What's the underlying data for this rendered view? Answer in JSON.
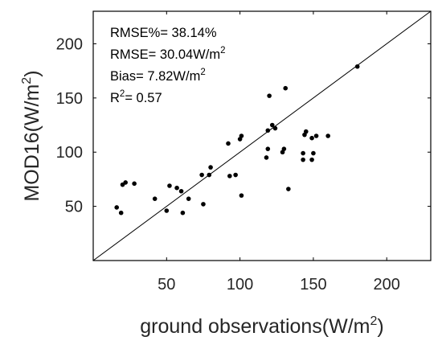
{
  "chart_data": {
    "type": "scatter",
    "title": "",
    "xlabel": {
      "prefix": "ground observations(W/m",
      "sup": "2",
      "suffix": ")"
    },
    "ylabel": {
      "prefix": "MOD16(W/m",
      "sup": "2",
      "suffix": ")"
    },
    "xlim": [
      0,
      230
    ],
    "ylim": [
      0,
      230
    ],
    "xticks": [
      50,
      100,
      150,
      200
    ],
    "yticks": [
      50,
      100,
      150,
      200
    ],
    "grid": false,
    "reference_line": "1:1",
    "stats": [
      {
        "prefix": "RMSE%= 38.14%",
        "sup": "",
        "suffix": ""
      },
      {
        "prefix": "RMSE= 30.04W/m",
        "sup": "2",
        "suffix": ""
      },
      {
        "prefix": "Bias=  7.82W/m",
        "sup": "2",
        "suffix": ""
      },
      {
        "prefix": "R",
        "sup": "2",
        "suffix": "=  0.57"
      }
    ],
    "points": [
      [
        16,
        49
      ],
      [
        19,
        44
      ],
      [
        20,
        70
      ],
      [
        22,
        72
      ],
      [
        28,
        71
      ],
      [
        42,
        57
      ],
      [
        50,
        46
      ],
      [
        52,
        69
      ],
      [
        57,
        67
      ],
      [
        60,
        64
      ],
      [
        61,
        44
      ],
      [
        65,
        57
      ],
      [
        74,
        79
      ],
      [
        75,
        52
      ],
      [
        79,
        79
      ],
      [
        80,
        86
      ],
      [
        92,
        108
      ],
      [
        93,
        78
      ],
      [
        97,
        79
      ],
      [
        100,
        112
      ],
      [
        101,
        60
      ],
      [
        101,
        115
      ],
      [
        118,
        95
      ],
      [
        119,
        120
      ],
      [
        119,
        103
      ],
      [
        120,
        152
      ],
      [
        122,
        125
      ],
      [
        124,
        122
      ],
      [
        129,
        100
      ],
      [
        130,
        103
      ],
      [
        131,
        159
      ],
      [
        133,
        66
      ],
      [
        143,
        93
      ],
      [
        143,
        99
      ],
      [
        144,
        116
      ],
      [
        145,
        119
      ],
      [
        149,
        93
      ],
      [
        149,
        113
      ],
      [
        150,
        99
      ],
      [
        152,
        115
      ],
      [
        160,
        115
      ],
      [
        180,
        179
      ]
    ],
    "colors": {
      "marker": "#000000",
      "line": "#000000",
      "frame": "#000000",
      "text": "#262626"
    }
  }
}
